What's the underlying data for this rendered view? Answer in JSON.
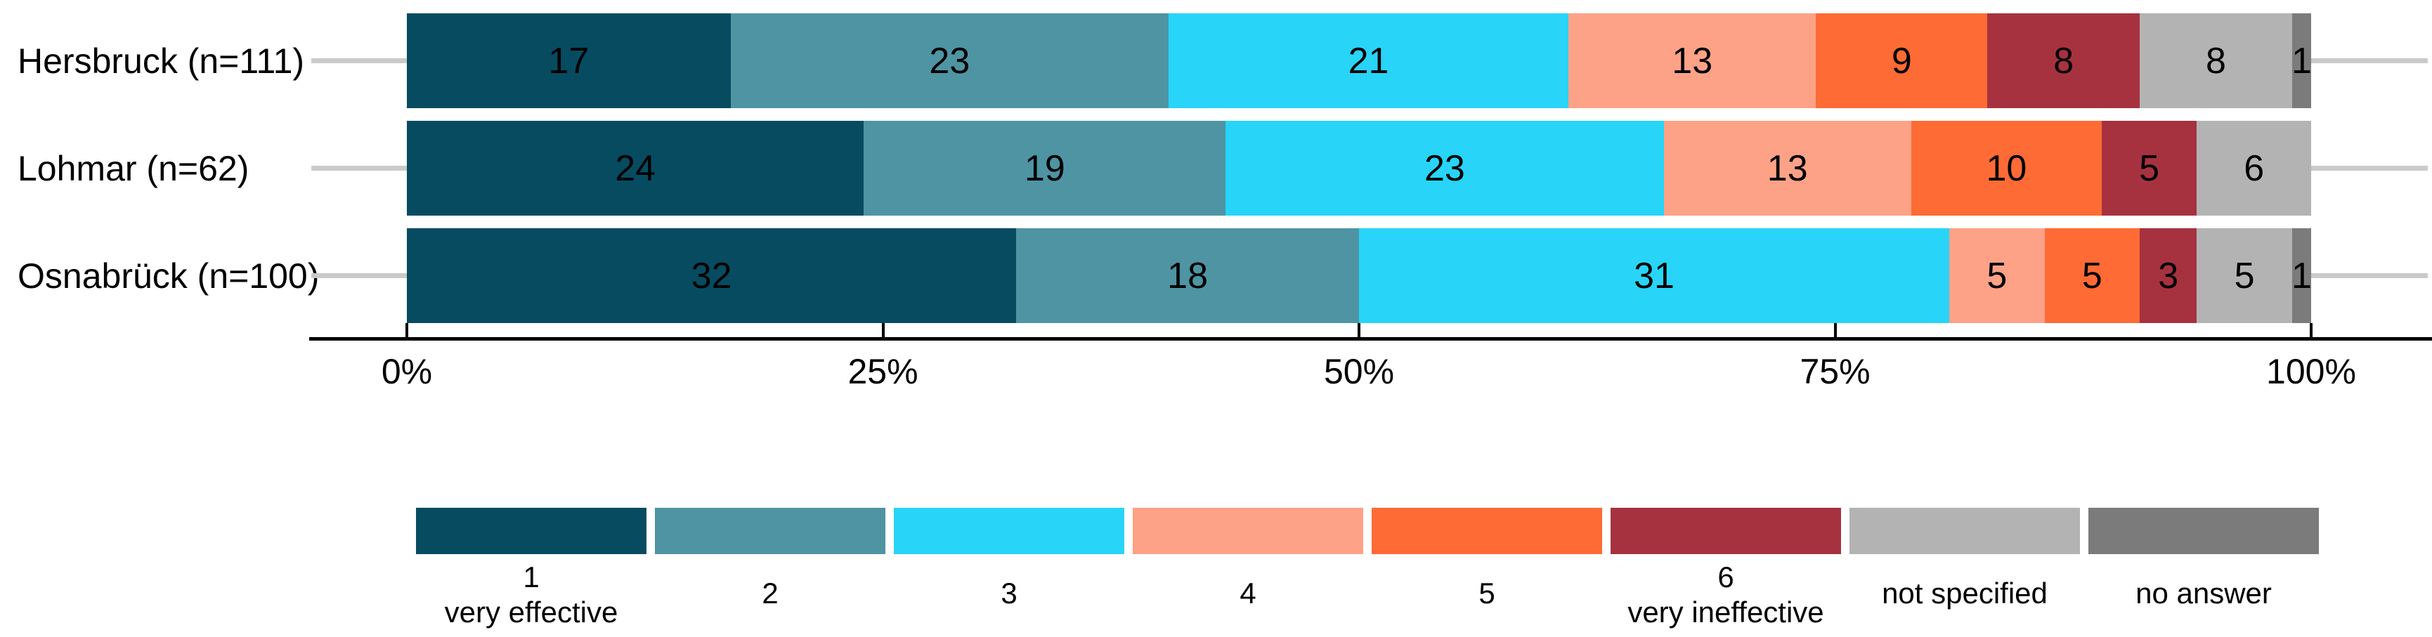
{
  "chart_data": {
    "type": "bar",
    "variant": "horizontal-stacked-percent",
    "title": "",
    "unit": "%",
    "categories": [
      "Hersbruck (n=111)",
      "Lohmar (n=62)",
      "Osnabrück (n=100)"
    ],
    "series": [
      {
        "name": "1 very effective",
        "values": [
          17,
          24,
          32
        ]
      },
      {
        "name": "2",
        "values": [
          23,
          19,
          18
        ]
      },
      {
        "name": "3",
        "values": [
          21,
          23,
          31
        ]
      },
      {
        "name": "4",
        "values": [
          13,
          13,
          5
        ]
      },
      {
        "name": "5",
        "values": [
          9,
          10,
          5
        ]
      },
      {
        "name": "6 very ineffective",
        "values": [
          8,
          5,
          3
        ]
      },
      {
        "name": "not specified",
        "values": [
          8,
          6,
          5
        ]
      },
      {
        "name": "no answer",
        "values": [
          1,
          0,
          1
        ]
      }
    ],
    "series_colors": [
      "#074b61",
      "#4e94a3",
      "#28d4f7",
      "#fda287",
      "#fe6b35",
      "#a63240",
      "#b3b3b3",
      "#7b7b7b"
    ],
    "value_labels_shown": true,
    "x_axis": {
      "range": [
        0,
        100
      ],
      "tick_labels": [
        "0%",
        "25%",
        "50%",
        "75%",
        "100%"
      ],
      "grid": false
    },
    "legend": {
      "position": "bottom",
      "entries": [
        {
          "lines": [
            "1",
            "very effective"
          ]
        },
        {
          "lines": [
            "2"
          ]
        },
        {
          "lines": [
            "3"
          ]
        },
        {
          "lines": [
            "4"
          ]
        },
        {
          "lines": [
            "5"
          ]
        },
        {
          "lines": [
            "6",
            "very ineffective"
          ]
        },
        {
          "lines": [
            "not specified"
          ]
        },
        {
          "lines": [
            "no answer"
          ]
        }
      ]
    }
  },
  "colors": {
    "background": "#ffffff",
    "axis": "#000000",
    "text": "#000000",
    "leader_line": "#cacaca"
  }
}
